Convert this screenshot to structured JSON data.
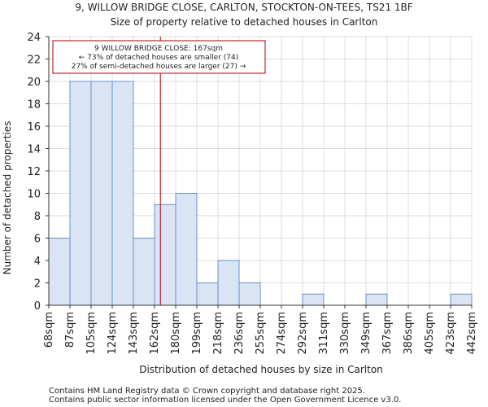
{
  "chart_data": {
    "type": "bar",
    "title": "9, WILLOW BRIDGE CLOSE, CARLTON, STOCKTON-ON-TEES, TS21 1BF",
    "subtitle": "Size of property relative to detached houses in Carlton",
    "xlabel": "Distribution of detached houses by size in Carlton",
    "ylabel": "Number of detached properties",
    "bin_edges": [
      68,
      87,
      105,
      124,
      143,
      162,
      180,
      199,
      218,
      236,
      255,
      274,
      292,
      311,
      330,
      349,
      367,
      386,
      405,
      423,
      442
    ],
    "tick_labels": [
      "68sqm",
      "87sqm",
      "105sqm",
      "124sqm",
      "143sqm",
      "162sqm",
      "180sqm",
      "199sqm",
      "218sqm",
      "236sqm",
      "255sqm",
      "274sqm",
      "292sqm",
      "311sqm",
      "330sqm",
      "349sqm",
      "367sqm",
      "386sqm",
      "405sqm",
      "423sqm",
      "442sqm"
    ],
    "values": [
      6,
      20,
      20,
      20,
      6,
      9,
      10,
      2,
      4,
      2,
      0,
      0,
      1,
      0,
      0,
      1,
      0,
      0,
      0,
      1
    ],
    "ylim": [
      0,
      24
    ],
    "yticks": [
      0,
      2,
      4,
      6,
      8,
      10,
      12,
      14,
      16,
      18,
      20,
      22,
      24
    ],
    "grid": true,
    "marker": {
      "value": 167,
      "color": "#aa0000"
    },
    "annotation": {
      "lines": [
        "9 WILLOW BRIDGE CLOSE: 167sqm",
        "← 73% of detached houses are smaller (74)",
        "27% of semi-detached houses are larger (27) →"
      ],
      "border_color": "#aa0000"
    },
    "bar_fill": "#dae4f5",
    "bar_stroke": "#6a8fc9"
  },
  "footer": {
    "line1": "Contains HM Land Registry data © Crown copyright and database right 2025.",
    "line2": "Contains public sector information licensed under the Open Government Licence v3.0."
  }
}
